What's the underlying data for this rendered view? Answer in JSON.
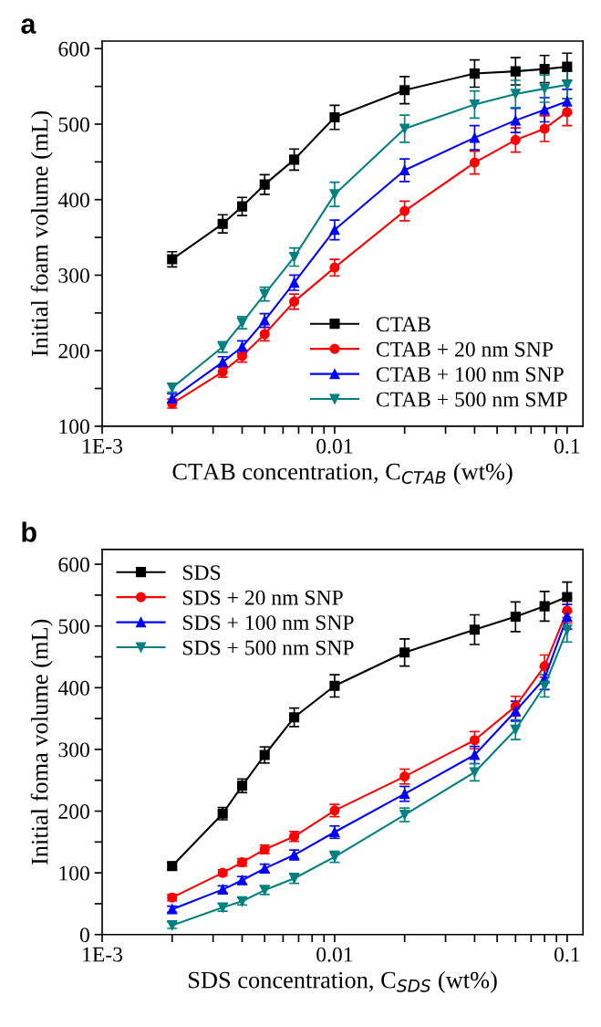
{
  "chart_data": [
    {
      "type": "line",
      "title": "a",
      "xlabel": "CTAB concentration, C$_{CTAB}$ (wt%)",
      "ylabel": "Initial foam volume (mL)",
      "log": "x",
      "xlim": [
        0.001,
        0.117
      ],
      "ylim": [
        100,
        610
      ],
      "xticks": [
        {
          "value": 0.001,
          "label": "1E-3"
        },
        {
          "value": 0.002,
          "label": null
        },
        {
          "value": 0.003,
          "label": null
        },
        {
          "value": 0.004,
          "label": null
        },
        {
          "value": 0.005,
          "label": null
        },
        {
          "value": 0.006,
          "label": null
        },
        {
          "value": 0.007,
          "label": null
        },
        {
          "value": 0.008,
          "label": null
        },
        {
          "value": 0.009,
          "label": null
        },
        {
          "value": 0.01,
          "label": "0.01"
        },
        {
          "value": 0.02,
          "label": null
        },
        {
          "value": 0.03,
          "label": null
        },
        {
          "value": 0.04,
          "label": null
        },
        {
          "value": 0.05,
          "label": null
        },
        {
          "value": 0.06,
          "label": null
        },
        {
          "value": 0.07,
          "label": null
        },
        {
          "value": 0.08,
          "label": null
        },
        {
          "value": 0.09,
          "label": null
        },
        {
          "value": 0.1,
          "label": "0.1"
        }
      ],
      "yticks": [
        100,
        {
          "value": 150,
          "label": null
        },
        200,
        {
          "value": 250,
          "label": null
        },
        300,
        {
          "value": 350,
          "label": null
        },
        400,
        {
          "value": 450,
          "label": null
        },
        500,
        {
          "value": 550,
          "label": null
        },
        600
      ],
      "x": [
        0.002,
        0.0033,
        0.004,
        0.005,
        0.0067,
        0.01,
        0.02,
        0.04,
        0.06,
        0.08,
        0.1
      ],
      "legend": "bottom right",
      "grid": false,
      "line_style": "solid",
      "series": [
        {
          "name": "CTAB",
          "color": "#000000",
          "marker": "square",
          "values": [
            321,
            368,
            391,
            420,
            453,
            509,
            545,
            567,
            570,
            573,
            576
          ],
          "errors": [
            10,
            12,
            12,
            13,
            14,
            16,
            18,
            18,
            18,
            18,
            18
          ]
        },
        {
          "name": "CTAB + 20 nm SNP",
          "color": "#ff0000",
          "marker": "circle",
          "values": [
            130,
            172,
            193,
            222,
            265,
            310,
            385,
            449,
            479,
            494,
            516
          ],
          "errors": [
            6,
            7,
            8,
            9,
            10,
            11,
            13,
            15,
            16,
            17,
            18
          ]
        },
        {
          "name": "CTAB + 100 nm SNP",
          "color": "#0000ff",
          "marker": "triangle",
          "values": [
            137,
            185,
            205,
            240,
            290,
            360,
            439,
            482,
            505,
            519,
            530
          ],
          "errors": [
            6,
            7,
            8,
            9,
            10,
            13,
            15,
            16,
            16,
            16,
            16
          ]
        },
        {
          "name": "CTAB + 500 nm SMP",
          "color": "#008080",
          "marker": "triangle_down",
          "values": [
            151,
            205,
            237,
            275,
            324,
            407,
            494,
            526,
            540,
            547,
            552
          ],
          "errors": [
            6,
            7,
            8,
            9,
            12,
            16,
            18,
            18,
            18,
            18,
            18
          ]
        }
      ]
    },
    {
      "type": "line",
      "title": "b",
      "xlabel": "SDS concentration, C$_{SDS}$ (wt%)",
      "ylabel": "Initial foma volume (mL)",
      "log": "x",
      "xlim": [
        0.001,
        0.117
      ],
      "ylim": [
        0,
        624
      ],
      "xticks": [
        {
          "value": 0.001,
          "label": "1E-3"
        },
        {
          "value": 0.002,
          "label": null
        },
        {
          "value": 0.003,
          "label": null
        },
        {
          "value": 0.004,
          "label": null
        },
        {
          "value": 0.005,
          "label": null
        },
        {
          "value": 0.006,
          "label": null
        },
        {
          "value": 0.007,
          "label": null
        },
        {
          "value": 0.008,
          "label": null
        },
        {
          "value": 0.009,
          "label": null
        },
        {
          "value": 0.01,
          "label": "0.01"
        },
        {
          "value": 0.02,
          "label": null
        },
        {
          "value": 0.03,
          "label": null
        },
        {
          "value": 0.04,
          "label": null
        },
        {
          "value": 0.05,
          "label": null
        },
        {
          "value": 0.06,
          "label": null
        },
        {
          "value": 0.07,
          "label": null
        },
        {
          "value": 0.08,
          "label": null
        },
        {
          "value": 0.09,
          "label": null
        },
        {
          "value": 0.1,
          "label": "0.1"
        }
      ],
      "yticks": [
        0,
        {
          "value": 50,
          "label": null
        },
        100,
        {
          "value": 150,
          "label": null
        },
        200,
        {
          "value": 250,
          "label": null
        },
        300,
        {
          "value": 350,
          "label": null
        },
        400,
        {
          "value": 450,
          "label": null
        },
        500,
        {
          "value": 550,
          "label": null
        },
        600
      ],
      "x": [
        0.002,
        0.0033,
        0.004,
        0.005,
        0.0067,
        0.01,
        0.02,
        0.04,
        0.06,
        0.08,
        0.1
      ],
      "legend": "top left",
      "grid": false,
      "line_style": "solid",
      "series": [
        {
          "name": "SDS",
          "color": "#000000",
          "marker": "square",
          "values": [
            111,
            196,
            241,
            291,
            352,
            403,
            457,
            494,
            515,
            532,
            547
          ],
          "errors": [
            6,
            10,
            11,
            13,
            15,
            18,
            22,
            24,
            24,
            24,
            24
          ]
        },
        {
          "name": "SDS + 20 nm SNP",
          "color": "#ff0000",
          "marker": "circle",
          "values": [
            60,
            100,
            117,
            138,
            159,
            201,
            256,
            315,
            370,
            435,
            525
          ],
          "errors": [
            5,
            5,
            6,
            7,
            8,
            10,
            12,
            14,
            16,
            18,
            20
          ]
        },
        {
          "name": "SDS + 100 nm SNP",
          "color": "#0000ff",
          "marker": "triangle",
          "values": [
            41,
            73,
            88,
            107,
            129,
            166,
            228,
            291,
            362,
            415,
            515
          ],
          "errors": [
            5,
            6,
            6,
            7,
            8,
            10,
            12,
            14,
            16,
            18,
            20
          ]
        },
        {
          "name": "SDS + 500 nm SNP",
          "color": "#008080",
          "marker": "triangle_down",
          "values": [
            15,
            44,
            54,
            72,
            91,
            126,
            194,
            263,
            332,
            403,
            494
          ],
          "errors": [
            5,
            6,
            6,
            7,
            8,
            9,
            11,
            14,
            16,
            18,
            20
          ]
        }
      ]
    }
  ]
}
